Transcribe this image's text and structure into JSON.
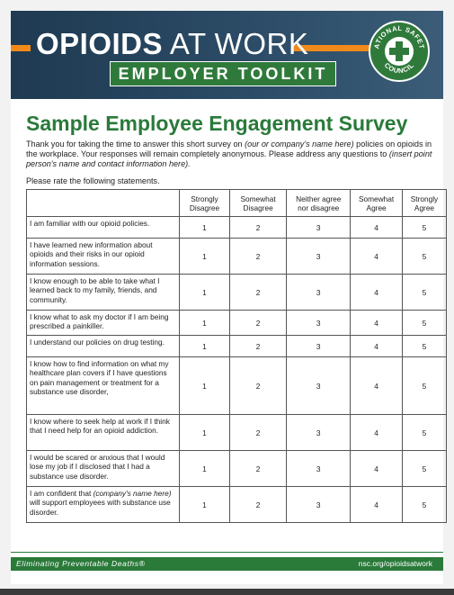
{
  "banner": {
    "title_bold": "OPIOIDS",
    "title_light": " AT WORK",
    "subtitle": "EMPLOYER TOOLKIT",
    "seal_top": "NATIONAL SAFETY",
    "seal_bottom": "COUNCIL",
    "colors": {
      "navy": "#1f3a52",
      "orange": "#f28a1a",
      "green": "#2f7a3b"
    }
  },
  "survey": {
    "title": "Sample Employee Engagement Survey",
    "intro_1": "Thank you for taking the time to answer this short survey on ",
    "intro_italic_1": "(our or company's name here)",
    "intro_2": " policies on opioids in the workplace. Your responses will remain completely anonymous. Please address any questions to ",
    "intro_italic_2": "(insert point person's name and contact information here).",
    "rate_prompt": "Please rate the following statements."
  },
  "table": {
    "headers": [
      "",
      "Strongly Disagree",
      "Somewhat Disagree",
      "Neither agree nor disagree",
      "Somewhat Agree",
      "Strongly Agree"
    ],
    "scale": [
      "1",
      "2",
      "3",
      "4",
      "5"
    ],
    "rows": [
      {
        "statement": "I am familiar with our opioid policies."
      },
      {
        "statement": "I have learned new information about opioids and their risks in our opioid information sessions."
      },
      {
        "statement": "I know enough to be able to take what I learned back to my family, friends, and community."
      },
      {
        "statement": "I know what to ask my doctor if I am being prescribed a painkiller."
      },
      {
        "statement": "I understand our policies on drug testing."
      },
      {
        "statement": "I know how to find information on what my healthcare plan covers if I have questions on pain management or treatment for a substance use disorder,"
      },
      {
        "statement": "I know where to seek help at work if I think that I need help for an opioid addiction."
      },
      {
        "statement": "I would be scared or anxious that I would lose my job if I disclosed that I had a substance use disorder."
      },
      {
        "statement_italic": "(company's name here)",
        "statement_pre": "I am confident that ",
        "statement_post": " will support employees with substance use disorder."
      }
    ]
  },
  "footer": {
    "tagline": "Eliminating Preventable Deaths®",
    "url": "nsc.org/opioidsatwork"
  }
}
